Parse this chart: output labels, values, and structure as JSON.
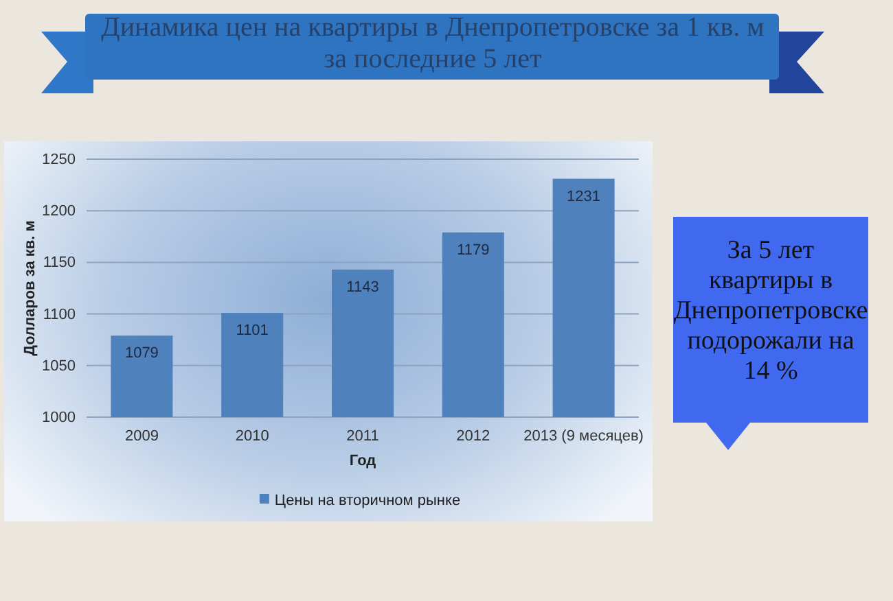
{
  "chart_data": {
    "type": "bar",
    "title": "Динамика цен на квартиры в Днепропетровске за 1 кв. м за последние 5 лет",
    "xlabel": "Год",
    "ylabel": "Долларов за кв. м",
    "categories": [
      "2009",
      "2010",
      "2011",
      "2012",
      "2013 (9 месяцев)"
    ],
    "series": [
      {
        "name": "Цены на вторичном рынке",
        "color": "#4f81bd",
        "values": [
          1079,
          1101,
          1143,
          1179,
          1231
        ]
      }
    ],
    "ylim": [
      1000,
      1250
    ],
    "yticks": [
      1000,
      1050,
      1100,
      1150,
      1200,
      1250
    ],
    "grid": "y",
    "legend": "bottom",
    "data_labels": true,
    "annotations": [
      "За 5 лет квартиры в Днепропетровске подорожали на 14 %"
    ]
  }
}
